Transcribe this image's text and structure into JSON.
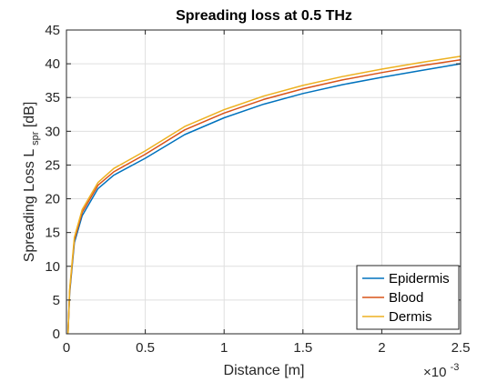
{
  "chart_data": {
    "type": "line",
    "title": "Spreading loss at 0.5 THz",
    "xlabel": "Distance [m]",
    "ylabel_main": "Spreading Loss L",
    "ylabel_sub": "spr",
    "ylabel_unit": " [dB]",
    "x_multiplier_base": "×10",
    "x_multiplier_exp": "-3",
    "xlim": [
      0,
      2.5
    ],
    "ylim": [
      0,
      45
    ],
    "xticks": [
      0,
      0.5,
      1,
      1.5,
      2,
      2.5
    ],
    "xtick_labels": [
      "0",
      "0.5",
      "1",
      "1.5",
      "2",
      "2.5"
    ],
    "yticks": [
      0,
      5,
      10,
      15,
      20,
      25,
      30,
      35,
      40,
      45
    ],
    "ytick_labels": [
      "0",
      "5",
      "10",
      "15",
      "20",
      "25",
      "30",
      "35",
      "40",
      "45"
    ],
    "grid": true,
    "legend_position": "bottom-right",
    "x": [
      0.01,
      0.02,
      0.05,
      0.1,
      0.2,
      0.3,
      0.5,
      0.75,
      1.0,
      1.25,
      1.5,
      1.75,
      2.0,
      2.25,
      2.5
    ],
    "series": [
      {
        "name": "Epidermis",
        "color": "#0072BD",
        "values": [
          0.0,
          6.0,
          13.5,
          17.5,
          21.5,
          23.5,
          26.0,
          29.5,
          32.0,
          34.0,
          35.6,
          36.9,
          38.0,
          39.0,
          40.0
        ]
      },
      {
        "name": "Blood",
        "color": "#D95319",
        "values": [
          0.0,
          6.3,
          13.9,
          18.0,
          22.0,
          24.0,
          26.6,
          30.2,
          32.7,
          34.7,
          36.3,
          37.6,
          38.7,
          39.7,
          40.6
        ]
      },
      {
        "name": "Dermis",
        "color": "#EDB120",
        "values": [
          0.0,
          6.6,
          14.3,
          18.4,
          22.4,
          24.5,
          27.1,
          30.7,
          33.2,
          35.2,
          36.8,
          38.1,
          39.2,
          40.2,
          41.1
        ]
      }
    ]
  }
}
